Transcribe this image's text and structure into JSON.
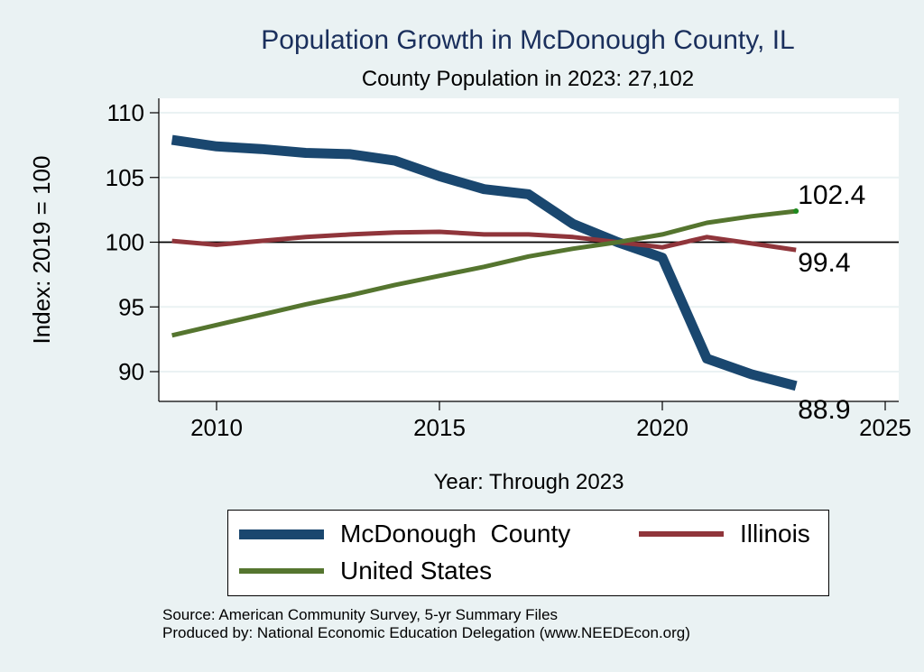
{
  "chart_data": {
    "type": "line",
    "title": "Population Growth in McDonough County, IL",
    "subtitle": "County Population in 2023: 27,102",
    "xlabel": "Year: Through 2023",
    "ylabel": "Index: 2019 = 100",
    "xlim": [
      2008.7,
      2025.3
    ],
    "ylim": [
      88.8,
      110.3
    ],
    "xticks": [
      2010,
      2015,
      2020,
      2025
    ],
    "yticks": [
      90,
      95,
      100,
      105,
      110
    ],
    "grid": true,
    "reference_line": 100,
    "x": [
      2009,
      2010,
      2011,
      2012,
      2013,
      2014,
      2015,
      2016,
      2017,
      2018,
      2019,
      2020,
      2021,
      2022,
      2023
    ],
    "series": [
      {
        "name": "McDonough  County",
        "color": "#1a476f",
        "values": [
          107.9,
          107.4,
          107.2,
          106.9,
          106.8,
          106.3,
          105.1,
          104.1,
          103.7,
          101.4,
          100.0,
          98.8,
          91.0,
          89.8,
          88.9
        ],
        "end_label": "88.9"
      },
      {
        "name": "Illinois",
        "color": "#90353b",
        "values": [
          100.1,
          99.8,
          100.1,
          100.4,
          100.6,
          100.75,
          100.8,
          100.6,
          100.6,
          100.4,
          100.0,
          99.6,
          100.4,
          99.9,
          99.4
        ],
        "end_label": "99.4"
      },
      {
        "name": "United States",
        "color": "#55752f",
        "values": [
          92.8,
          93.6,
          94.4,
          95.2,
          95.9,
          96.7,
          97.4,
          98.1,
          98.9,
          99.5,
          100.0,
          100.6,
          101.5,
          102.0,
          102.4
        ],
        "end_label": "102.4"
      }
    ],
    "legend_position": "bottom"
  },
  "legend": {
    "items": [
      {
        "label": "McDonough  County",
        "color": "#1a476f"
      },
      {
        "label": "Illinois",
        "color": "#90353b"
      },
      {
        "label": "United States",
        "color": "#55752f"
      }
    ]
  },
  "footer": {
    "source": "Source: American Community Survey, 5-yr Summary Files",
    "producer": "Produced by: National Economic Education Delegation (www.NEEDEcon.org)"
  }
}
